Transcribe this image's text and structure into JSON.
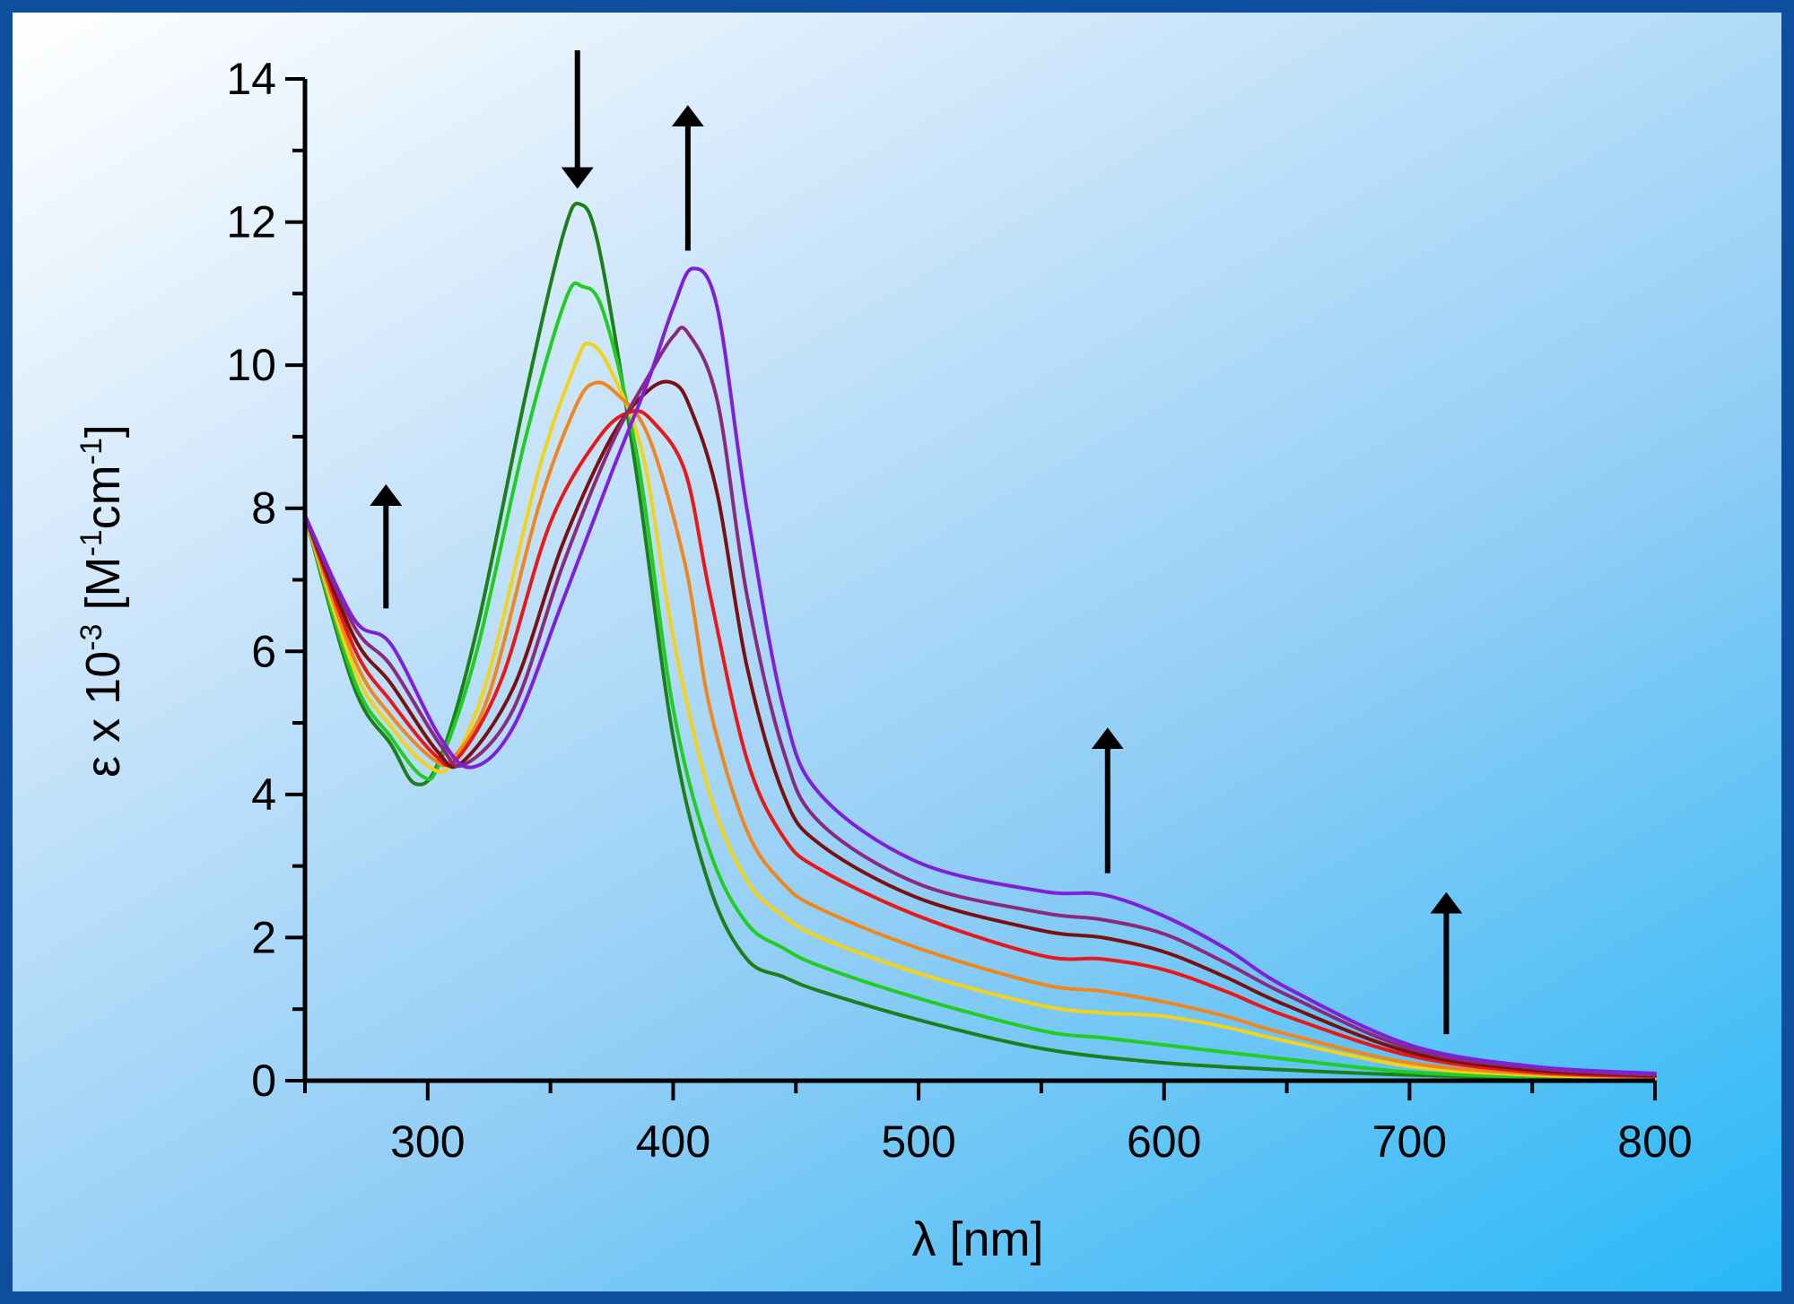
{
  "chart_data": {
    "type": "line",
    "xlabel": "λ [nm]",
    "ylabel_parts": {
      "base": "ε x 10",
      "exp1": "-3",
      "mid": " [M",
      "exp2": "-1",
      "mid2": "cm",
      "exp3": "-1",
      "end": "]"
    },
    "xlim": [
      250,
      800
    ],
    "ylim": [
      0,
      14
    ],
    "x_ticks": [
      "300",
      "400",
      "500",
      "600",
      "700",
      "800"
    ],
    "y_ticks": [
      "0",
      "2",
      "4",
      "6",
      "8",
      "10",
      "12",
      "14"
    ],
    "grid": false,
    "legend": "none",
    "series": [
      {
        "color": "#1c7f1c",
        "x": [
          250,
          270,
          285,
          295,
          305,
          320,
          340,
          355,
          362,
          370,
          385,
          400,
          415,
          430,
          445,
          460,
          500,
          550,
          600,
          650,
          700,
          750,
          800
        ],
        "y": [
          7.9,
          5.5,
          4.7,
          4.15,
          4.5,
          6.3,
          9.6,
          11.8,
          12.25,
          11.6,
          8.5,
          4.8,
          2.7,
          1.7,
          1.45,
          1.25,
          0.85,
          0.45,
          0.25,
          0.15,
          0.08,
          0.04,
          0.02
        ]
      },
      {
        "color": "#22cc22",
        "x": [
          250,
          270,
          285,
          298,
          305,
          320,
          340,
          356,
          363,
          372,
          386,
          400,
          415,
          430,
          445,
          460,
          500,
          550,
          575,
          600,
          650,
          700,
          750,
          800
        ],
        "y": [
          7.9,
          5.6,
          4.8,
          4.25,
          4.45,
          6.0,
          9.0,
          10.9,
          11.1,
          10.7,
          8.6,
          5.2,
          3.2,
          2.2,
          1.85,
          1.6,
          1.15,
          0.7,
          0.6,
          0.5,
          0.3,
          0.12,
          0.05,
          0.03
        ]
      },
      {
        "color": "#f2d21a",
        "x": [
          250,
          270,
          285,
          300,
          310,
          325,
          345,
          360,
          366,
          375,
          388,
          400,
          415,
          430,
          445,
          460,
          500,
          550,
          575,
          600,
          625,
          650,
          700,
          750,
          800
        ],
        "y": [
          7.9,
          5.75,
          4.95,
          4.4,
          4.45,
          5.7,
          8.5,
          10.0,
          10.3,
          9.9,
          8.7,
          6.2,
          4.0,
          2.8,
          2.3,
          2.0,
          1.5,
          1.05,
          0.95,
          0.9,
          0.75,
          0.55,
          0.2,
          0.08,
          0.04
        ]
      },
      {
        "color": "#f0871e",
        "x": [
          250,
          270,
          285,
          302,
          310,
          325,
          345,
          360,
          368,
          377,
          390,
          405,
          415,
          430,
          445,
          460,
          500,
          550,
          575,
          600,
          625,
          650,
          700,
          750,
          800
        ],
        "y": [
          7.9,
          5.9,
          5.1,
          4.5,
          4.5,
          5.4,
          8.0,
          9.4,
          9.75,
          9.6,
          9.0,
          7.2,
          5.2,
          3.5,
          2.75,
          2.4,
          1.85,
          1.35,
          1.25,
          1.1,
          0.9,
          0.65,
          0.25,
          0.1,
          0.05
        ]
      },
      {
        "color": "#e81818",
        "x": [
          250,
          270,
          285,
          303,
          312,
          330,
          350,
          370,
          383,
          392,
          405,
          415,
          430,
          445,
          460,
          500,
          550,
          575,
          600,
          625,
          650,
          700,
          750,
          800
        ],
        "y": [
          7.9,
          6.05,
          5.3,
          4.55,
          4.5,
          5.6,
          7.8,
          9.0,
          9.35,
          9.2,
          8.5,
          6.8,
          4.5,
          3.4,
          2.95,
          2.3,
          1.75,
          1.7,
          1.55,
          1.25,
          0.9,
          0.35,
          0.12,
          0.06
        ]
      },
      {
        "color": "#7a1010",
        "x": [
          250,
          270,
          285,
          304,
          314,
          335,
          355,
          375,
          390,
          400,
          407,
          418,
          430,
          445,
          460,
          500,
          550,
          575,
          600,
          625,
          650,
          700,
          750,
          800
        ],
        "y": [
          7.9,
          6.2,
          5.55,
          4.6,
          4.45,
          5.5,
          7.5,
          9.0,
          9.65,
          9.75,
          9.4,
          8.2,
          5.8,
          4.0,
          3.3,
          2.55,
          2.1,
          2.0,
          1.8,
          1.45,
          1.05,
          0.4,
          0.15,
          0.07
        ]
      },
      {
        "color": "#8a2a7a",
        "x": [
          250,
          270,
          285,
          305,
          315,
          335,
          355,
          375,
          390,
          400,
          406,
          418,
          430,
          445,
          460,
          500,
          550,
          575,
          600,
          625,
          650,
          700,
          750,
          800
        ],
        "y": [
          7.9,
          6.35,
          5.8,
          4.7,
          4.42,
          5.2,
          7.2,
          8.9,
          9.85,
          10.4,
          10.45,
          9.5,
          6.8,
          4.6,
          3.6,
          2.75,
          2.35,
          2.25,
          2.05,
          1.65,
          1.2,
          0.45,
          0.18,
          0.08
        ]
      },
      {
        "color": "#7f1fd8",
        "x": [
          250,
          270,
          285,
          305,
          318,
          335,
          355,
          375,
          390,
          400,
          408,
          418,
          430,
          445,
          460,
          500,
          550,
          575,
          600,
          625,
          650,
          700,
          750,
          800
        ],
        "y": [
          7.9,
          6.45,
          6.1,
          4.8,
          4.38,
          4.95,
          6.7,
          8.5,
          9.8,
          10.8,
          11.35,
          10.8,
          8.0,
          5.2,
          4.0,
          3.05,
          2.65,
          2.6,
          2.3,
          1.85,
          1.3,
          0.5,
          0.2,
          0.1
        ]
      }
    ],
    "annotations": [
      {
        "type": "arrow",
        "direction": "up",
        "x": 283,
        "y_from": 6.6,
        "y_to": 8.2
      },
      {
        "type": "arrow",
        "direction": "down",
        "x": 361,
        "y_from": 14.4,
        "y_to": 12.6
      },
      {
        "type": "arrow",
        "direction": "up",
        "x": 406,
        "y_from": 11.6,
        "y_to": 13.5
      },
      {
        "type": "arrow",
        "direction": "up",
        "x": 577,
        "y_from": 2.9,
        "y_to": 4.8
      },
      {
        "type": "arrow",
        "direction": "up",
        "x": 715,
        "y_from": 0.65,
        "y_to": 2.5
      }
    ]
  }
}
